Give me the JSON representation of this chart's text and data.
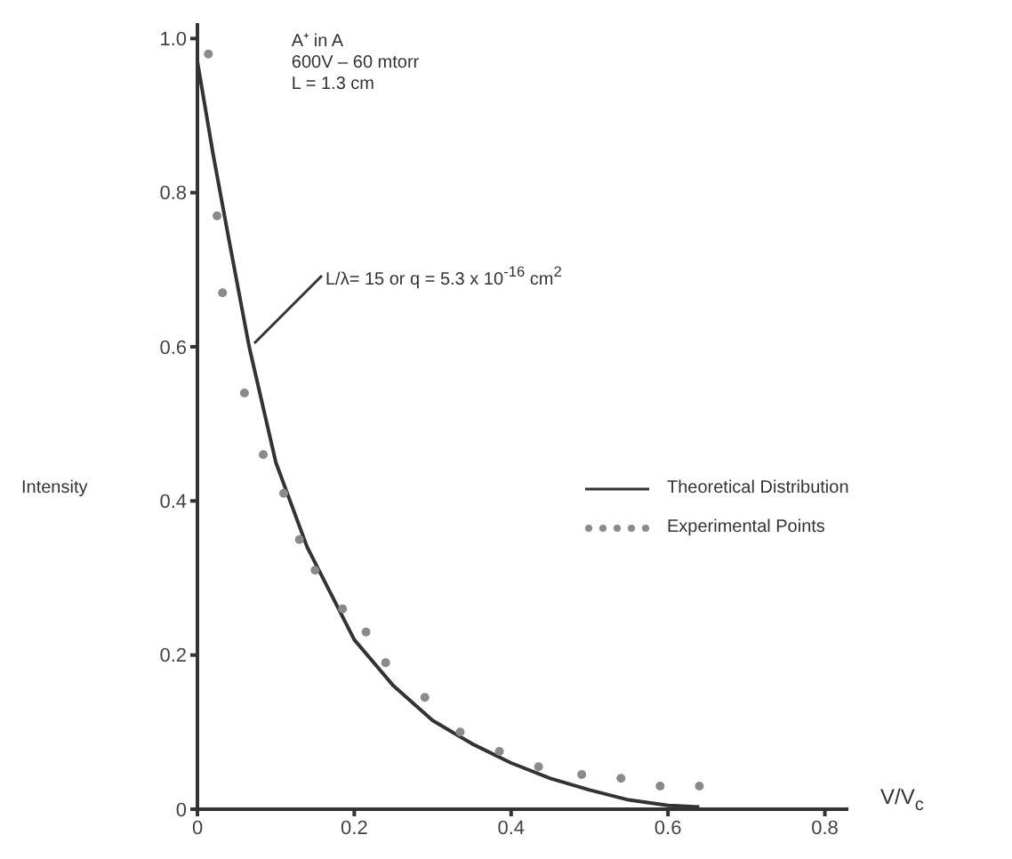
{
  "chart_data": {
    "type": "scatter",
    "xlabel": "V/V$_{c}$",
    "ylabel": "Intensity",
    "annotations": [
      "A⁺ in A",
      "600V – 60 mtorr",
      "L = 1.3 cm",
      {
        "text": "L/λ= 15 or q = 5.3 x 10$^{-16}$ cm$^{2}$",
        "x": 0.068,
        "y": 0.6
      }
    ],
    "xlim": [
      0,
      0.83
    ],
    "xticks": [
      0,
      0.2,
      0.4,
      0.6,
      0.8
    ],
    "ylim": [
      0,
      1.02
    ],
    "yticks": [
      0,
      0.2,
      0.4,
      0.6,
      0.8,
      {
        "value": 1,
        "label": "1.0"
      }
    ],
    "grid": false,
    "legend": "right",
    "series": [
      {
        "name": "Theoretical Distribution",
        "type": "line",
        "color": "#333333",
        "marker": "none",
        "line_style": "solid",
        "x": [
          0,
          0.02,
          0.04,
          0.066,
          0.1,
          0.14,
          0.2,
          0.25,
          0.3,
          0.35,
          0.4,
          0.45,
          0.5,
          0.55,
          0.6,
          0.64
        ],
        "values": [
          0.97,
          0.85,
          0.74,
          0.6,
          0.45,
          0.34,
          0.22,
          0.16,
          0.115,
          0.085,
          0.06,
          0.04,
          0.025,
          0.012,
          0.005,
          0.003
        ]
      },
      {
        "name": "Experimental Points",
        "color": "#8a8a8a",
        "marker": "circle",
        "x": [
          0.014,
          0.025,
          0.032,
          0.06,
          0.084,
          0.11,
          0.13,
          0.15,
          0.185,
          0.215,
          0.24,
          0.29,
          0.335,
          0.385,
          0.435,
          0.49,
          0.54,
          0.59,
          0.64
        ],
        "values": [
          0.98,
          0.77,
          0.67,
          0.54,
          0.46,
          0.41,
          0.35,
          0.31,
          0.26,
          0.23,
          0.19,
          0.145,
          0.1,
          0.075,
          0.055,
          0.045,
          0.04,
          0.03,
          0.03
        ]
      }
    ]
  }
}
